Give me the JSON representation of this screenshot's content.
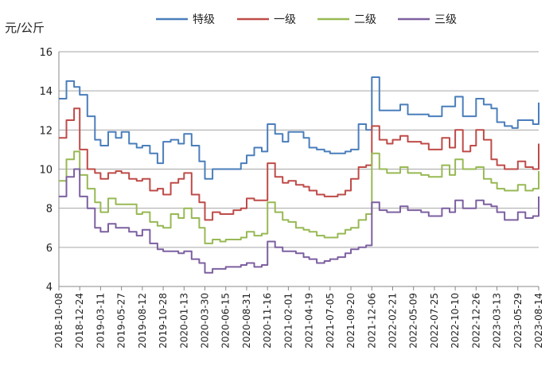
{
  "chart_data": {
    "type": "line",
    "ylabel": "元/公斤",
    "ylim": [
      4,
      16
    ],
    "yticks": [
      4,
      6,
      8,
      10,
      12,
      14,
      16
    ],
    "grid": true,
    "legend_position": "top",
    "x_tick_labels": [
      "2018-10-08",
      "2018-12-24",
      "2019-03-11",
      "2019-05-27",
      "2019-08-12",
      "2019-10-28",
      "2020-01-13",
      "2020-03-30",
      "2020-06-15",
      "2020-08-31",
      "2020-11-16",
      "2021-02-01",
      "2021-04-19",
      "2021-07-05",
      "2021-09-20",
      "2021-12-06",
      "2022-02-21",
      "2022-05-09",
      "2022-07-25",
      "2022-10-10",
      "2022-12-26",
      "2023-03-13",
      "2023-05-29",
      "2023-08-14"
    ],
    "x": [
      "2018-10-08",
      "2018-11-05",
      "2018-12-03",
      "2018-12-24",
      "2019-01-21",
      "2019-02-18",
      "2019-03-11",
      "2019-04-08",
      "2019-05-06",
      "2019-05-27",
      "2019-06-24",
      "2019-07-22",
      "2019-08-12",
      "2019-09-09",
      "2019-10-07",
      "2019-10-28",
      "2019-11-25",
      "2019-12-23",
      "2020-01-13",
      "2020-02-10",
      "2020-03-09",
      "2020-03-30",
      "2020-04-27",
      "2020-05-25",
      "2020-06-15",
      "2020-07-13",
      "2020-08-10",
      "2020-08-31",
      "2020-09-28",
      "2020-10-26",
      "2020-11-16",
      "2020-12-14",
      "2021-01-11",
      "2021-02-01",
      "2021-03-01",
      "2021-03-29",
      "2021-04-19",
      "2021-05-17",
      "2021-06-14",
      "2021-07-05",
      "2021-08-02",
      "2021-08-30",
      "2021-09-20",
      "2021-10-18",
      "2021-11-15",
      "2021-12-06",
      "2022-01-03",
      "2022-01-31",
      "2022-02-21",
      "2022-03-21",
      "2022-04-18",
      "2022-05-09",
      "2022-06-06",
      "2022-07-04",
      "2022-07-25",
      "2022-08-22",
      "2022-09-19",
      "2022-10-10",
      "2022-11-07",
      "2022-12-05",
      "2022-12-26",
      "2023-01-23",
      "2023-02-20",
      "2023-03-13",
      "2023-04-10",
      "2023-05-08",
      "2023-05-29",
      "2023-06-26",
      "2023-07-24",
      "2023-08-14"
    ],
    "series": [
      {
        "name": "特级",
        "color": "#4a7ebb",
        "values": [
          13.6,
          14.5,
          14.2,
          13.8,
          12.7,
          11.5,
          11.2,
          11.9,
          11.6,
          11.9,
          11.3,
          11.1,
          11.2,
          10.8,
          10.3,
          11.4,
          11.5,
          11.3,
          11.8,
          11.2,
          10.4,
          9.5,
          10.0,
          10.0,
          10.0,
          10.0,
          10.3,
          10.7,
          11.1,
          10.9,
          12.3,
          11.8,
          11.4,
          11.9,
          11.9,
          11.6,
          11.1,
          11.0,
          10.9,
          10.8,
          10.8,
          10.9,
          11.0,
          12.3,
          12.0,
          14.7,
          13.0,
          13.0,
          13.0,
          13.3,
          12.8,
          12.8,
          12.8,
          12.7,
          12.7,
          13.2,
          13.2,
          13.7,
          12.7,
          12.7,
          13.6,
          13.3,
          13.1,
          12.4,
          12.2,
          12.1,
          12.5,
          12.5,
          12.3,
          13.4
        ]
      },
      {
        "name": "一级",
        "color": "#be4b48",
        "values": [
          11.6,
          12.5,
          13.1,
          11.0,
          10.0,
          9.8,
          9.5,
          9.8,
          9.9,
          9.8,
          9.5,
          9.4,
          9.5,
          8.9,
          9.0,
          8.7,
          9.3,
          9.5,
          9.8,
          8.7,
          8.3,
          7.4,
          7.8,
          7.7,
          7.7,
          7.9,
          8.0,
          8.5,
          8.4,
          8.4,
          10.3,
          9.6,
          9.3,
          9.4,
          9.2,
          9.1,
          8.9,
          8.7,
          8.6,
          8.6,
          8.7,
          8.9,
          9.5,
          10.1,
          10.2,
          12.2,
          11.5,
          11.3,
          11.5,
          11.7,
          11.4,
          11.4,
          11.3,
          11.0,
          11.0,
          11.6,
          11.1,
          12.0,
          10.9,
          11.2,
          12.0,
          11.5,
          10.5,
          10.2,
          10.0,
          10.0,
          10.4,
          10.1,
          10.0,
          11.3
        ]
      },
      {
        "name": "二级",
        "color": "#98b954",
        "values": [
          9.4,
          10.5,
          10.9,
          9.7,
          9.0,
          8.3,
          7.8,
          8.5,
          8.2,
          8.2,
          8.2,
          7.7,
          7.8,
          7.3,
          7.1,
          7.0,
          7.7,
          7.5,
          8.0,
          7.5,
          7.0,
          6.2,
          6.4,
          6.3,
          6.4,
          6.4,
          6.5,
          6.8,
          6.6,
          6.7,
          8.3,
          7.8,
          7.4,
          7.3,
          7.0,
          6.9,
          6.8,
          6.6,
          6.5,
          6.5,
          6.7,
          6.9,
          7.0,
          7.4,
          7.7,
          10.8,
          10.0,
          9.8,
          9.8,
          10.1,
          9.8,
          9.8,
          9.7,
          9.6,
          9.6,
          10.2,
          9.7,
          10.5,
          10.0,
          10.0,
          10.1,
          9.5,
          9.3,
          9.0,
          8.9,
          8.9,
          9.2,
          8.9,
          9.0,
          9.9
        ]
      },
      {
        "name": "三级",
        "color": "#7d60a0",
        "values": [
          8.6,
          9.6,
          10.0,
          8.6,
          8.0,
          7.0,
          6.8,
          7.2,
          7.0,
          7.0,
          6.8,
          6.6,
          6.9,
          6.2,
          5.9,
          5.8,
          5.8,
          5.7,
          5.8,
          5.4,
          5.2,
          4.7,
          4.9,
          4.9,
          5.0,
          5.0,
          5.1,
          5.2,
          5.0,
          5.1,
          6.3,
          6.0,
          5.8,
          5.8,
          5.7,
          5.5,
          5.4,
          5.2,
          5.3,
          5.4,
          5.5,
          5.7,
          5.9,
          6.0,
          6.1,
          8.3,
          7.9,
          7.8,
          7.8,
          8.1,
          7.9,
          7.9,
          7.8,
          7.6,
          7.6,
          8.0,
          7.8,
          8.4,
          8.0,
          8.0,
          8.4,
          8.2,
          8.1,
          7.8,
          7.4,
          7.4,
          7.8,
          7.5,
          7.6,
          8.6
        ]
      }
    ]
  }
}
